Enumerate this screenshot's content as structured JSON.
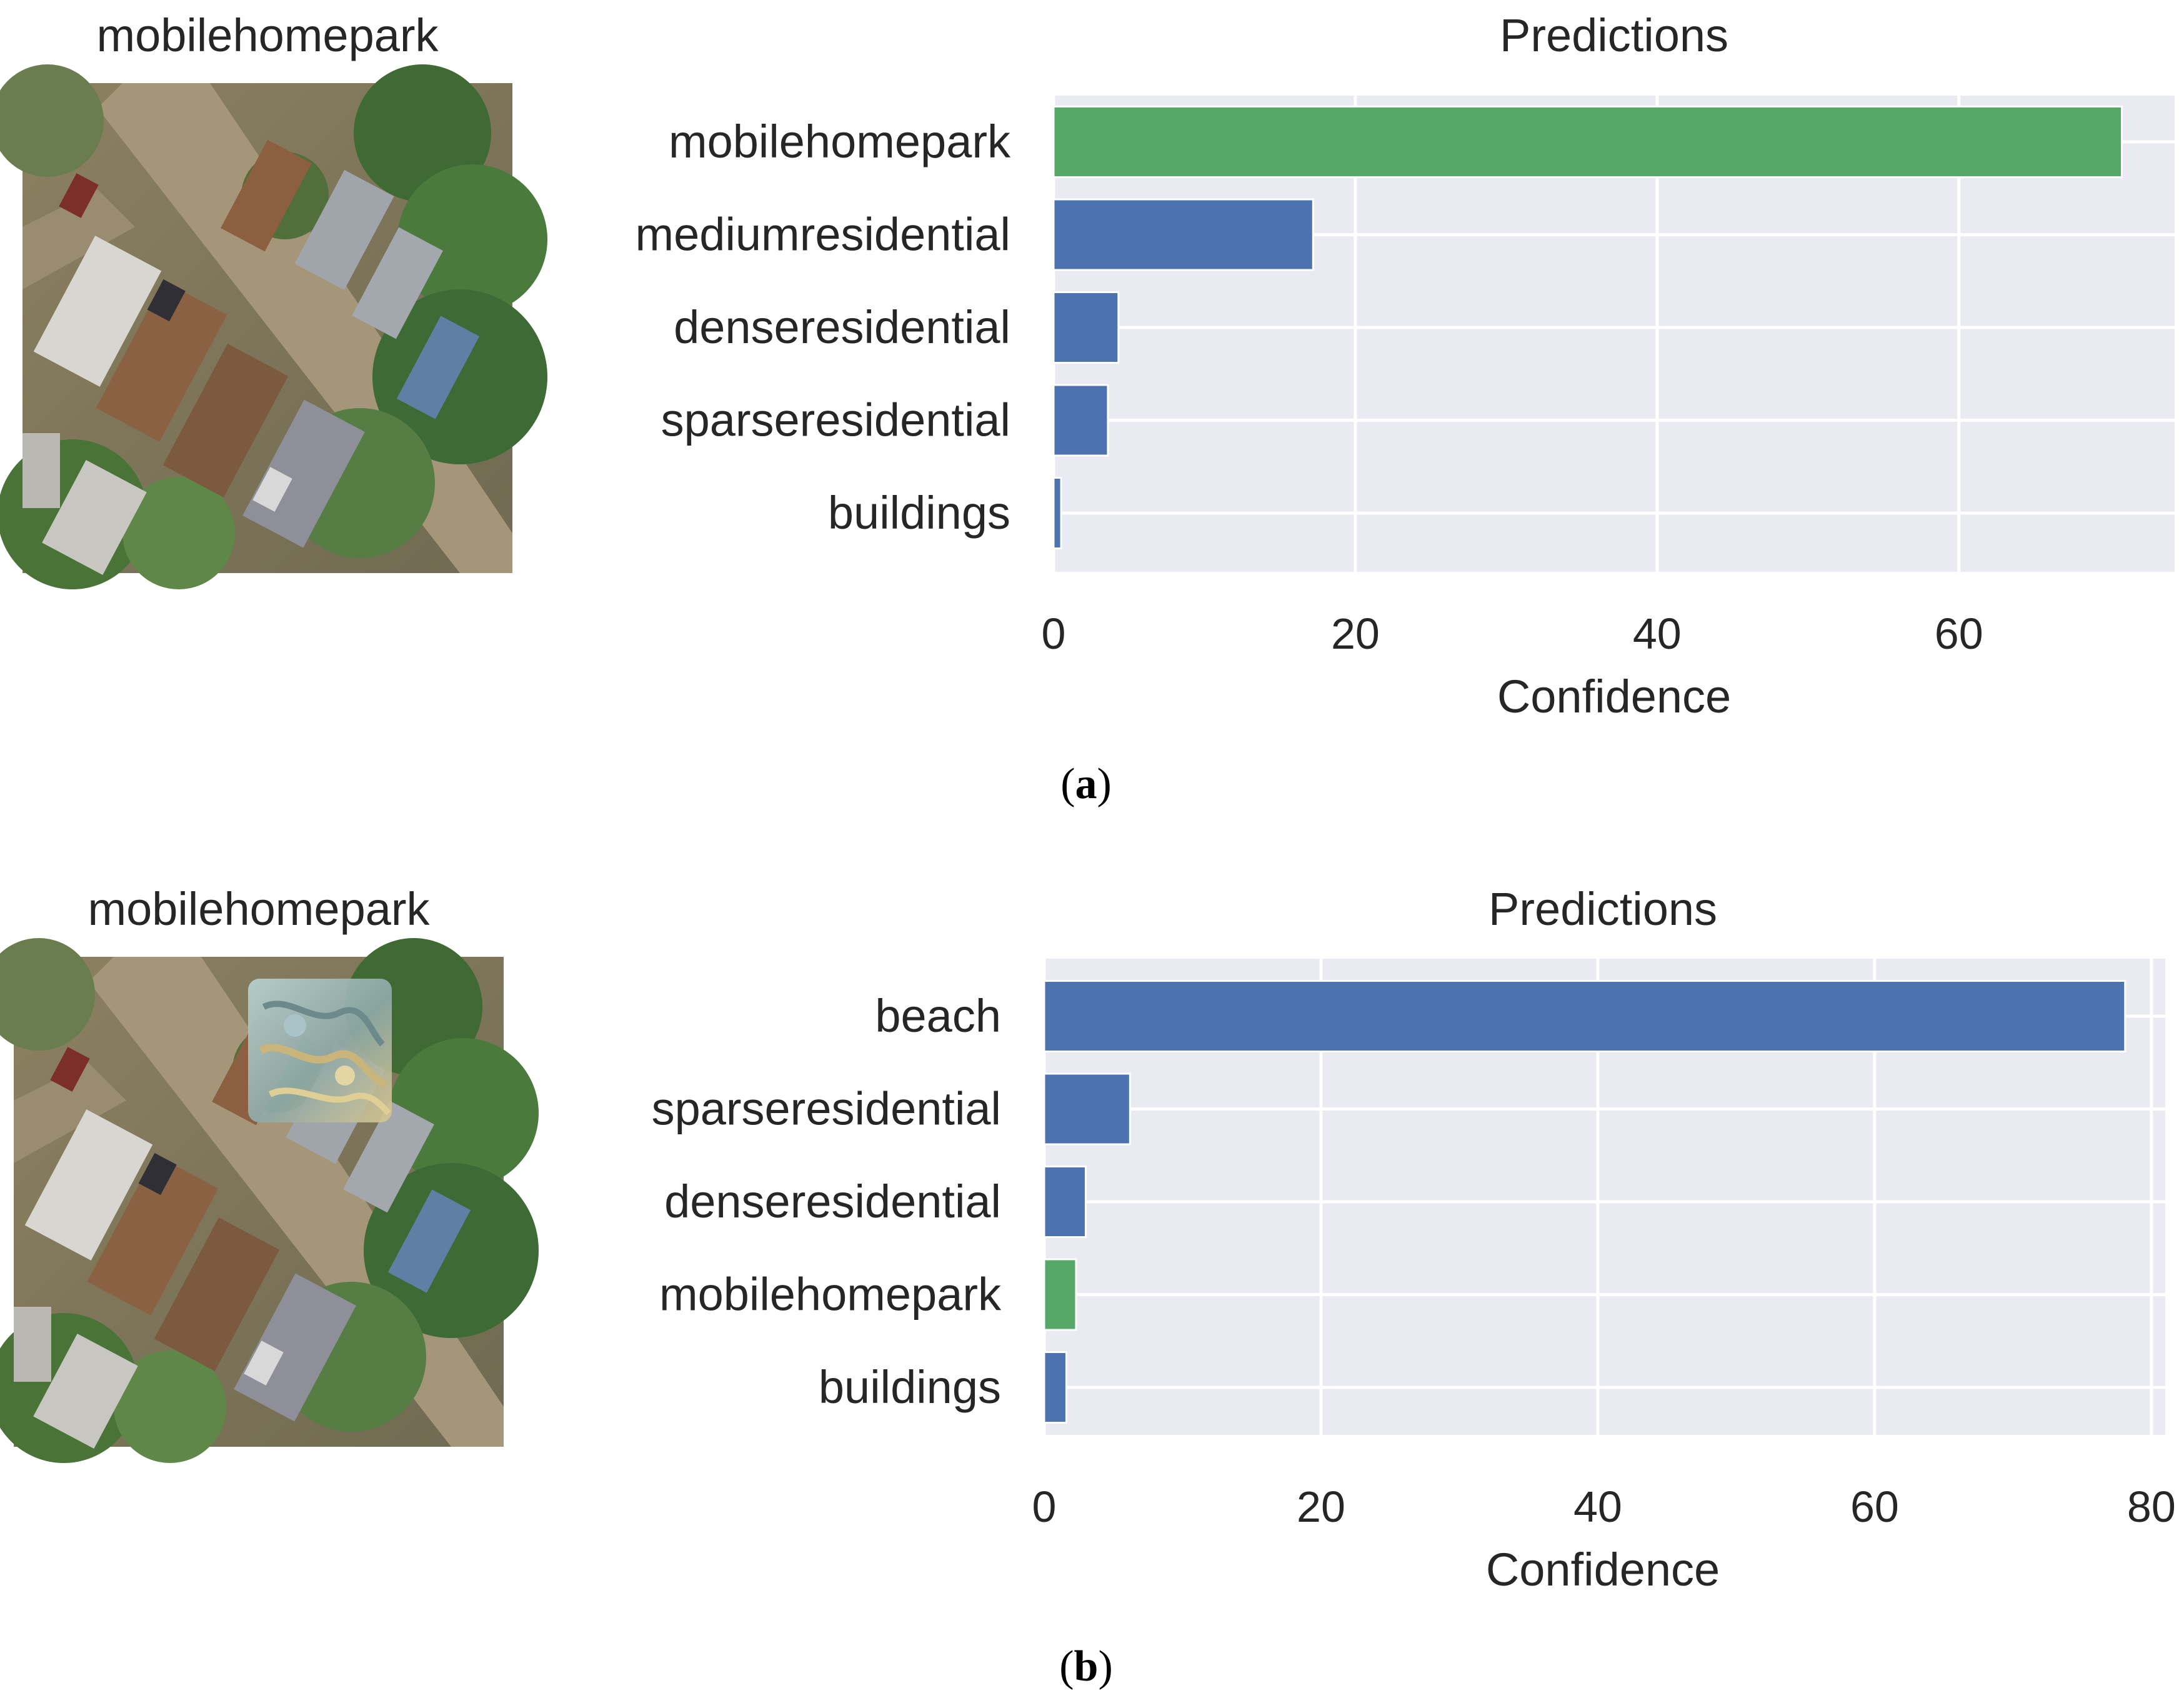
{
  "chart_data": [
    {
      "type": "bar",
      "orientation": "horizontal",
      "panel_label": "a",
      "image_title": "mobilehomepark",
      "title": "Predictions",
      "xlabel": "Confidence",
      "ylabel": "",
      "categories": [
        "mobilehomepark",
        "mediumresidential",
        "denseresidential",
        "sparseresidential",
        "buildings"
      ],
      "values": [
        70.8,
        17.2,
        4.3,
        3.6,
        0.5
      ],
      "bar_colors": [
        "#55a868",
        "#4c72b0",
        "#4c72b0",
        "#4c72b0",
        "#4c72b0"
      ],
      "xlim": [
        0,
        74.3
      ],
      "xticks": [
        0,
        20,
        40,
        60
      ],
      "grid": true
    },
    {
      "type": "bar",
      "orientation": "horizontal",
      "panel_label": "b",
      "image_title": "mobilehomepark",
      "title": "Predictions",
      "xlabel": "Confidence",
      "ylabel": "",
      "categories": [
        "beach",
        "sparseresidential",
        "denseresidential",
        "mobilehomepark",
        "buildings"
      ],
      "values": [
        78.1,
        6.2,
        3.0,
        2.3,
        1.6
      ],
      "bar_colors": [
        "#4c72b0",
        "#4c72b0",
        "#4c72b0",
        "#55a868",
        "#4c72b0"
      ],
      "xlim": [
        0,
        81.0
      ],
      "xticks": [
        0,
        20,
        40,
        60,
        80
      ],
      "grid": true
    }
  ],
  "colors": {
    "axes_background": "#eaeaf2",
    "grid": "#ffffff",
    "predicted_class": "#55a868",
    "other_class": "#4c72b0"
  }
}
